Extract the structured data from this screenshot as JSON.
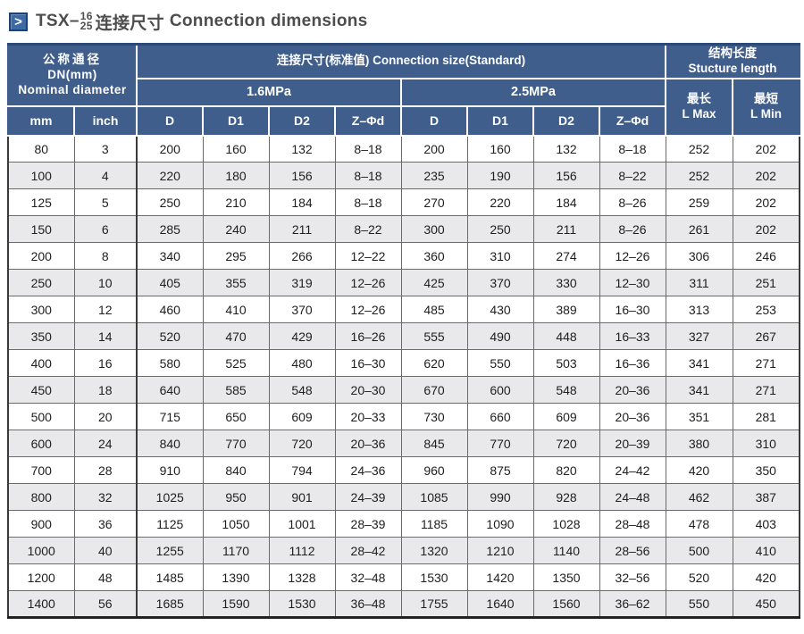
{
  "title": {
    "icon": "chevron-right-icon",
    "icon_glyph": ">",
    "prefix": "TSX–",
    "fraction_top": "16",
    "fraction_bottom": "25",
    "suffix_cn": "连接尺寸",
    "suffix_en": "Connection dimensions"
  },
  "colors": {
    "header_bg": "#405e8c",
    "header_top_edge": "#2c4a78",
    "stripe_row": "#e9e9eb",
    "icon_blue": "#3c6ba3",
    "icon_border": "#22406d",
    "title_text": "#4d4d4d"
  },
  "table": {
    "header": {
      "nominal_diameter": {
        "cn": "公称通径",
        "line2": "DN(mm)",
        "line3": "Nominal diameter",
        "sub_mm": "mm",
        "sub_inch": "inch"
      },
      "connection_size": {
        "label": "连接尺寸(标准值) Connection size(Standard)",
        "group1": "1.6MPa",
        "group2": "2.5MPa",
        "sub": [
          "D",
          "D1",
          "D2",
          "Z–Φd"
        ]
      },
      "structure_length": {
        "cn": "结构长度",
        "en": "Stucture length",
        "max_cn": "最长",
        "max_en": "L Max",
        "min_cn": "最短",
        "min_en": "L Min"
      }
    },
    "rows": [
      [
        "80",
        "3",
        "200",
        "160",
        "132",
        "8–18",
        "200",
        "160",
        "132",
        "8–18",
        "252",
        "202"
      ],
      [
        "100",
        "4",
        "220",
        "180",
        "156",
        "8–18",
        "235",
        "190",
        "156",
        "8–22",
        "252",
        "202"
      ],
      [
        "125",
        "5",
        "250",
        "210",
        "184",
        "8–18",
        "270",
        "220",
        "184",
        "8–26",
        "259",
        "202"
      ],
      [
        "150",
        "6",
        "285",
        "240",
        "211",
        "8–22",
        "300",
        "250",
        "211",
        "8–26",
        "261",
        "202"
      ],
      [
        "200",
        "8",
        "340",
        "295",
        "266",
        "12–22",
        "360",
        "310",
        "274",
        "12–26",
        "306",
        "246"
      ],
      [
        "250",
        "10",
        "405",
        "355",
        "319",
        "12–26",
        "425",
        "370",
        "330",
        "12–30",
        "311",
        "251"
      ],
      [
        "300",
        "12",
        "460",
        "410",
        "370",
        "12–26",
        "485",
        "430",
        "389",
        "16–30",
        "313",
        "253"
      ],
      [
        "350",
        "14",
        "520",
        "470",
        "429",
        "16–26",
        "555",
        "490",
        "448",
        "16–33",
        "327",
        "267"
      ],
      [
        "400",
        "16",
        "580",
        "525",
        "480",
        "16–30",
        "620",
        "550",
        "503",
        "16–36",
        "341",
        "271"
      ],
      [
        "450",
        "18",
        "640",
        "585",
        "548",
        "20–30",
        "670",
        "600",
        "548",
        "20–36",
        "341",
        "271"
      ],
      [
        "500",
        "20",
        "715",
        "650",
        "609",
        "20–33",
        "730",
        "660",
        "609",
        "20–36",
        "351",
        "281"
      ],
      [
        "600",
        "24",
        "840",
        "770",
        "720",
        "20–36",
        "845",
        "770",
        "720",
        "20–39",
        "380",
        "310"
      ],
      [
        "700",
        "28",
        "910",
        "840",
        "794",
        "24–36",
        "960",
        "875",
        "820",
        "24–42",
        "420",
        "350"
      ],
      [
        "800",
        "32",
        "1025",
        "950",
        "901",
        "24–39",
        "1085",
        "990",
        "928",
        "24–48",
        "462",
        "387"
      ],
      [
        "900",
        "36",
        "1125",
        "1050",
        "1001",
        "28–39",
        "1185",
        "1090",
        "1028",
        "28–48",
        "478",
        "403"
      ],
      [
        "1000",
        "40",
        "1255",
        "1170",
        "1112",
        "28–42",
        "1320",
        "1210",
        "1140",
        "28–56",
        "500",
        "410"
      ],
      [
        "1200",
        "48",
        "1485",
        "1390",
        "1328",
        "32–48",
        "1530",
        "1420",
        "1350",
        "32–56",
        "520",
        "420"
      ],
      [
        "1400",
        "56",
        "1685",
        "1590",
        "1530",
        "36–48",
        "1755",
        "1640",
        "1560",
        "36–62",
        "550",
        "450"
      ]
    ]
  }
}
